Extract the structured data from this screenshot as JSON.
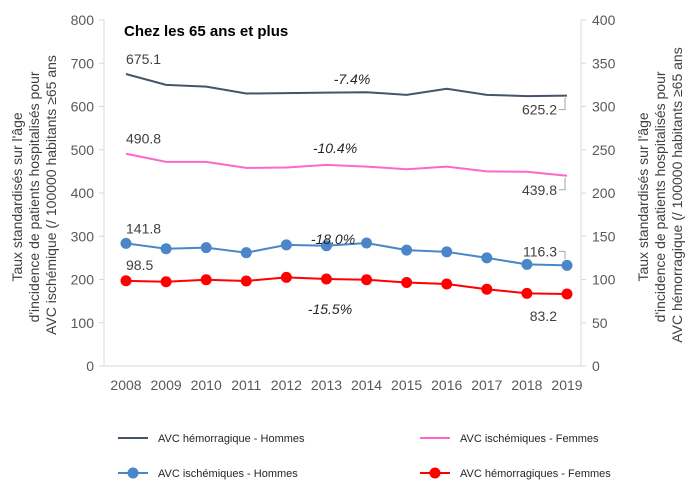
{
  "chart_data": {
    "type": "line",
    "title": "Chez les 65 ans et plus",
    "ylabel_left": "Taux standardisés  sur l'âge d'incidence de patients hospitalisés pour AVC ischémique (/ 100000 habitants ≥65 ans",
    "ylabel_right": "Taux standardisés  sur l'âge d'incidence de patients hospitalisés pour AVC hémorragique (/ 100000 habitants ≥65 ans",
    "ylim_left": [
      0,
      800
    ],
    "yticks_left": [
      "0",
      "100",
      "200",
      "300",
      "400",
      "500",
      "600",
      "700",
      "800"
    ],
    "ylim_right": [
      0,
      400
    ],
    "yticks_right": [
      "0",
      "50",
      "100",
      "150",
      "200",
      "250",
      "300",
      "350",
      "400"
    ],
    "grid": false,
    "legend_position": "bottom",
    "categories": [
      "2008",
      "2009",
      "2010",
      "2011",
      "2012",
      "2013",
      "2014",
      "2015",
      "2016",
      "2017",
      "2018",
      "2019"
    ],
    "series": [
      {
        "name": "AVC hémorragique - Hommes",
        "axis": "left",
        "color": "#44546A",
        "markers": false,
        "values": [
          675.1,
          650,
          646,
          630,
          631,
          632,
          633,
          627,
          641,
          627,
          624,
          625.2
        ],
        "start_label": "675.1",
        "end_label": "625.2",
        "change_label": "-7.4%"
      },
      {
        "name": "AVC ischémiques - Femmes",
        "axis": "left",
        "color": "#FF66CC",
        "markers": false,
        "values": [
          490.8,
          472,
          472,
          458,
          459,
          465,
          461,
          455,
          461,
          450,
          449,
          439.8
        ],
        "start_label": "490.8",
        "end_label": "439.8",
        "change_label": "-10.4%"
      },
      {
        "name": "AVC ischémiques - Hommes",
        "axis": "right",
        "color": "#4A86C8",
        "markers": true,
        "values": [
          141.8,
          135.6,
          136.8,
          131,
          140,
          139,
          142.2,
          134,
          132,
          125,
          117.5,
          116.3
        ],
        "start_label": "141.8",
        "end_label": "116.3",
        "change_label": "-18.0%"
      },
      {
        "name": "AVC hémorragiques - Femmes",
        "axis": "right",
        "color": "#FF0000",
        "markers": true,
        "values": [
          98.5,
          97.4,
          99.7,
          98.3,
          102.5,
          100.6,
          99.7,
          96.6,
          94.8,
          88.7,
          84,
          83.2
        ],
        "start_label": "98.5",
        "end_label": "83.2",
        "change_label": "-15.5%"
      }
    ]
  }
}
